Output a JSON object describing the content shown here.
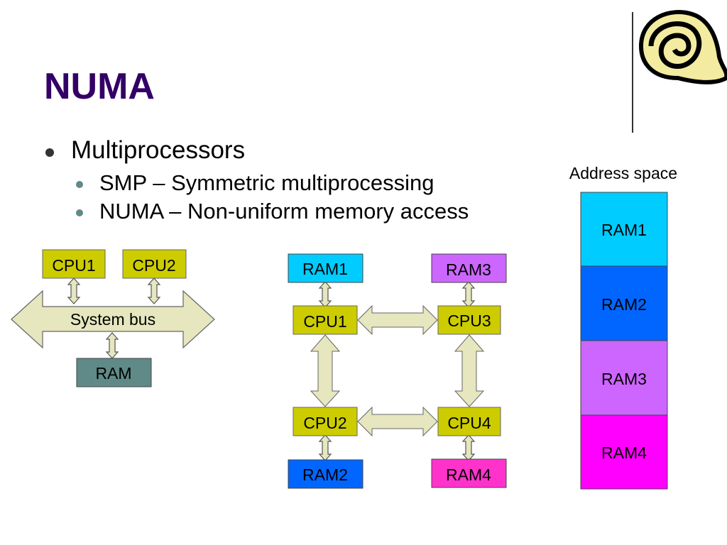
{
  "slide": {
    "title": "NUMA",
    "bullets": [
      {
        "text": "Multiprocessors",
        "sub": [
          "SMP – Symmetric multiprocessing",
          "NUMA – Non-uniform memory access"
        ]
      }
    ]
  },
  "logo": {
    "icon": "scroll-icon"
  },
  "smp_diagram": {
    "cpu1": "CPU1",
    "cpu2": "CPU2",
    "bus": "System bus",
    "ram": "RAM"
  },
  "numa_diagram": {
    "ram1": "RAM1",
    "ram2": "RAM2",
    "ram3": "RAM3",
    "ram4": "RAM4",
    "cpu1": "CPU1",
    "cpu2": "CPU2",
    "cpu3": "CPU3",
    "cpu4": "CPU4"
  },
  "address_space": {
    "label": "Address space",
    "segments": [
      "RAM1",
      "RAM2",
      "RAM3",
      "RAM4"
    ]
  },
  "colors": {
    "title": "#330066",
    "cpu": "#cccc00",
    "arrow": "#e6e6bf",
    "ram_smp": "#5f8a88",
    "ram1": "#00ccff",
    "ram2": "#0066ff",
    "ram3": "#cc66ff",
    "ram4": "#ff00ff",
    "ram4_numa": "#ff33cc"
  }
}
